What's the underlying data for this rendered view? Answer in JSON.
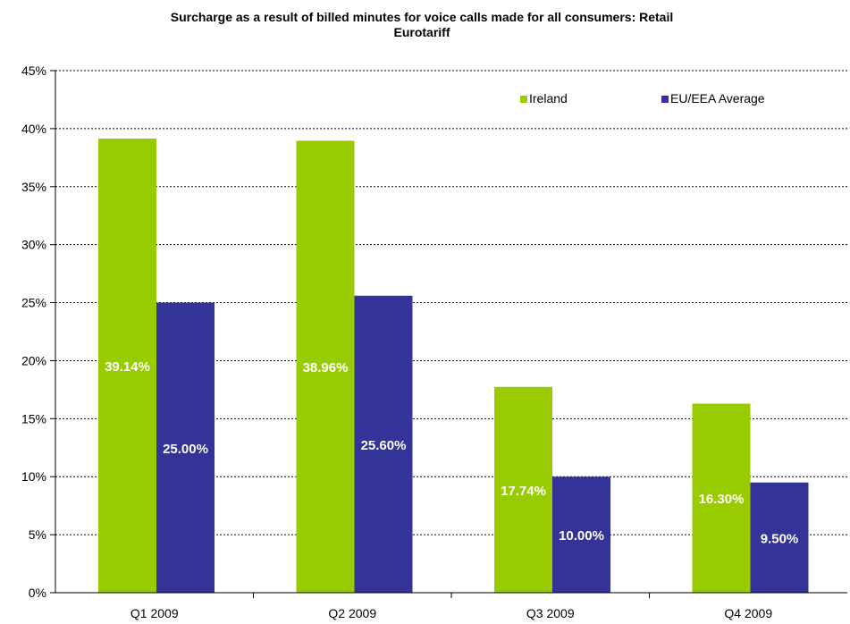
{
  "chart_data": {
    "type": "bar",
    "title_lines": [
      "Surcharge as a result of billed minutes for voice calls made for all consumers: Retail",
      "Eurotariff"
    ],
    "categories": [
      "Q1 2009",
      "Q2 2009",
      "Q3 2009",
      "Q4 2009"
    ],
    "series": [
      {
        "name": "Ireland",
        "color": "#99cc00",
        "values": [
          39.14,
          38.96,
          17.74,
          16.3
        ],
        "labels": [
          "39.14%",
          "38.96%",
          "17.74%",
          "16.30%"
        ]
      },
      {
        "name": "EU/EEA Average",
        "color": "#333399",
        "values": [
          25.0,
          25.6,
          10.0,
          9.5
        ],
        "labels": [
          "25.00%",
          "25.60%",
          "10.00%",
          "9.50%"
        ]
      }
    ],
    "y_ticks": [
      "0%",
      "5%",
      "10%",
      "15%",
      "20%",
      "25%",
      "30%",
      "35%",
      "40%",
      "45%"
    ],
    "ylim": [
      0,
      45
    ],
    "y_step": 5,
    "grid": true,
    "legend_position": "top-right"
  }
}
